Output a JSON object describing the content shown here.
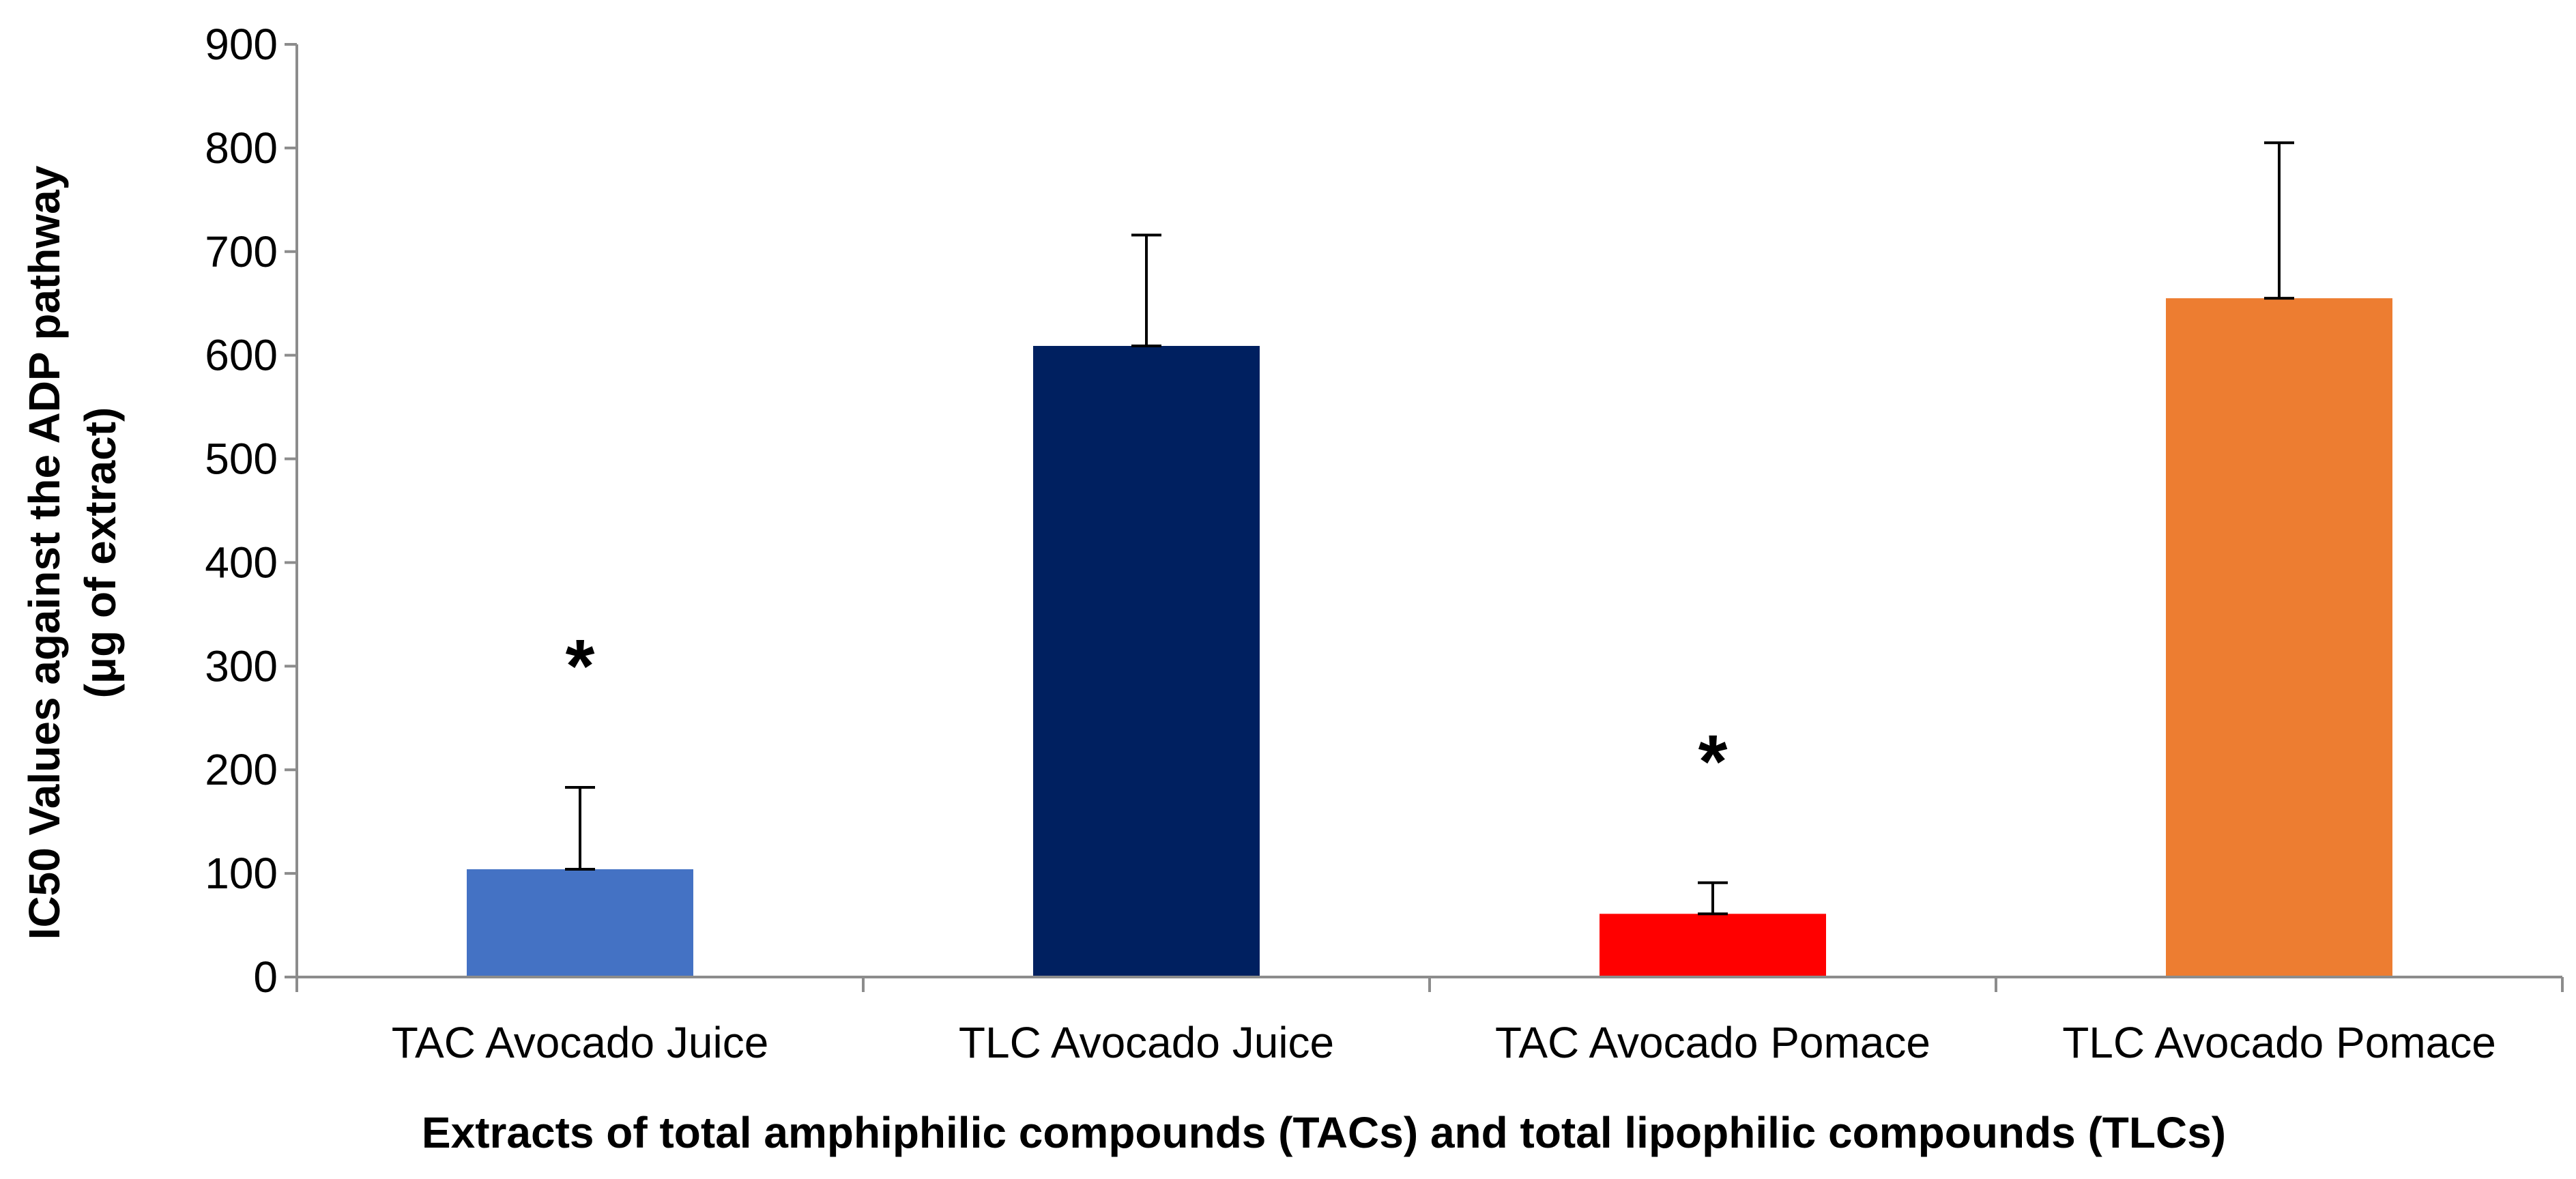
{
  "chart_data": {
    "type": "bar",
    "title": "",
    "categories": [
      "TAC Avocado Juice",
      "TLC Avocado Juice",
      "TAC Avocado Pomace",
      "TLC Avocado Pomace"
    ],
    "values": [
      104,
      609,
      61,
      655
    ],
    "error_plus": [
      79,
      107,
      30,
      150
    ],
    "colors": [
      "#4472C4",
      "#002060",
      "#FF0000",
      "#ED7D31"
    ],
    "significance": [
      "*",
      "",
      "*",
      ""
    ],
    "xlabel": "Extracts of total amphiphilic compounds (TACs) and total lipophilic compounds (TLCs)",
    "ylabel_line1": "IC50 Values against the ADP pathway",
    "ylabel_line2": "(μg of extract)",
    "ylim": [
      0,
      900
    ],
    "yticks": [
      0,
      100,
      200,
      300,
      400,
      500,
      600,
      700,
      800,
      900
    ],
    "grid": false,
    "legend": "none"
  }
}
